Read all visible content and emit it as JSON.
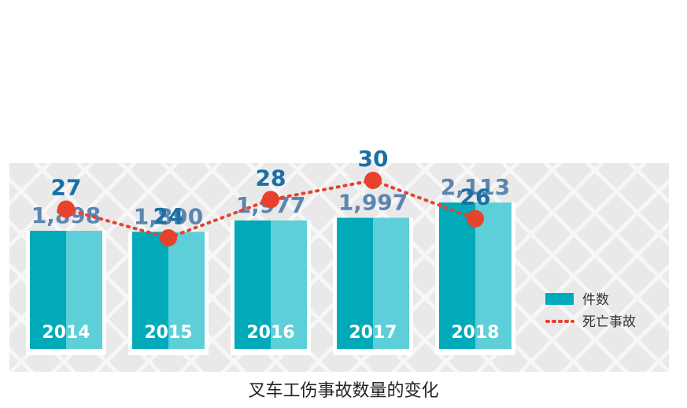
{
  "chart_data": {
    "type": "bar",
    "title": "叉车工伤事故数量的变化",
    "categories": [
      "2014",
      "2015",
      "2016",
      "2017",
      "2018"
    ],
    "series": [
      {
        "name": "件数",
        "type": "bar",
        "values": [
          1898,
          1890,
          1977,
          1997,
          2113
        ],
        "labels": [
          "1,898",
          "1,890",
          "1,977",
          "1,997",
          "2,113"
        ]
      },
      {
        "name": "死亡事故",
        "type": "line",
        "values": [
          27,
          24,
          28,
          30,
          26
        ],
        "labels": [
          "27",
          "24",
          "28",
          "30",
          "26"
        ]
      }
    ],
    "colors": {
      "bar_dark": "#00aab8",
      "bar_light": "#5ccfd8",
      "line": "#e8412c",
      "bar_label": "#5b86b0",
      "line_label": "#1a6fa6",
      "background_pattern": "#e6e6e6"
    },
    "legend": {
      "position": "bottom-right",
      "items": [
        "件数",
        "死亡事故"
      ]
    },
    "grid": false
  }
}
